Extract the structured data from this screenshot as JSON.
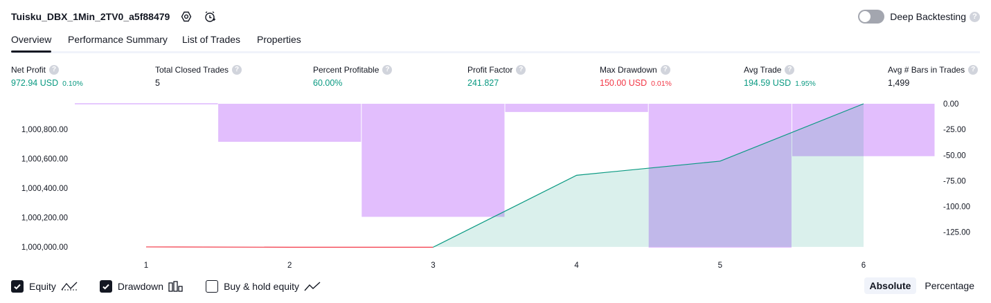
{
  "header": {
    "strategy_name": "Tuisku_DBX_1Min_2TV0_a5f88479",
    "deep_backtesting_label": "Deep Backtesting",
    "help_glyph": "?"
  },
  "tabs": [
    {
      "label": "Overview",
      "active": true
    },
    {
      "label": "Performance Summary",
      "active": false
    },
    {
      "label": "List of Trades",
      "active": false
    },
    {
      "label": "Properties",
      "active": false
    }
  ],
  "metrics": [
    {
      "label": "Net Profit",
      "value": "972.94 USD",
      "pct": "0.10%",
      "tone": "pos"
    },
    {
      "label": "Total Closed Trades",
      "value": "5",
      "pct": "",
      "tone": "neutral"
    },
    {
      "label": "Percent Profitable",
      "value": "60.00%",
      "pct": "",
      "tone": "pos"
    },
    {
      "label": "Profit Factor",
      "value": "241.827",
      "pct": "",
      "tone": "pos"
    },
    {
      "label": "Max Drawdown",
      "value": "150.00 USD",
      "pct": "0.01%",
      "tone": "neg"
    },
    {
      "label": "Avg Trade",
      "value": "194.59 USD",
      "pct": "1.95%",
      "tone": "pos"
    },
    {
      "label": "Avg # Bars in Trades",
      "value": "1,499",
      "pct": "",
      "tone": "neutral"
    }
  ],
  "chart_data": {
    "type": "line",
    "x": [
      1,
      2,
      3,
      4,
      5,
      6
    ],
    "x_tick_labels": [
      "1",
      "2",
      "3",
      "4",
      "5",
      "6"
    ],
    "left_axis": {
      "ticks": [
        1000000,
        1000200,
        1000400,
        1000600,
        1000800
      ],
      "tick_labels": [
        "1,000,000.00",
        "1,000,200.00",
        "1,000,400.00",
        "1,000,600.00",
        "1,000,800.00"
      ],
      "range": [
        999995,
        1000972.94
      ]
    },
    "right_axis": {
      "ticks": [
        0,
        -25,
        -50,
        -75,
        -100,
        -125
      ],
      "tick_labels": [
        "0.00",
        "-25.00",
        "-50.00",
        "-75.00",
        "-100.00",
        "-125.00"
      ],
      "range": [
        -140,
        0
      ]
    },
    "series": [
      {
        "type": "line",
        "style": "equity",
        "points": [
          [
            0,
            1000000
          ],
          [
            1,
            1000000
          ],
          [
            2,
            999998
          ],
          [
            3,
            999998
          ],
          [
            4,
            1000487
          ],
          [
            5,
            1000583
          ],
          [
            6,
            1000972.94
          ]
        ],
        "line_color": "#089981",
        "loss_line_color": "#f23645",
        "fill_color": "#089981"
      },
      {
        "type": "bar",
        "style": "drawdown",
        "bars": [
          {
            "x_from": 0.5,
            "x_to": 1.5,
            "value": 0
          },
          {
            "x_from": 1.5,
            "x_to": 2.5,
            "value": -37
          },
          {
            "x_from": 2.5,
            "x_to": 3.5,
            "value": -110
          },
          {
            "x_from": 3.5,
            "x_to": 4.5,
            "value": -8
          },
          {
            "x_from": 4.5,
            "x_to": 5.5,
            "value": -140
          },
          {
            "x_from": 5.5,
            "x_to": 6.5,
            "value": -51
          }
        ],
        "color": "#ce93fc"
      }
    ],
    "grid": false
  },
  "bottom": {
    "checkboxes": [
      {
        "label": "Equity",
        "checked": true,
        "icon": "equity-line-icon"
      },
      {
        "label": "Drawdown",
        "checked": true,
        "icon": "drawdown-bars-icon"
      },
      {
        "label": "Buy & hold equity",
        "checked": false,
        "icon": "buy-hold-line-icon"
      }
    ],
    "modes": [
      {
        "label": "Absolute",
        "active": true
      },
      {
        "label": "Percentage",
        "active": false
      }
    ]
  }
}
